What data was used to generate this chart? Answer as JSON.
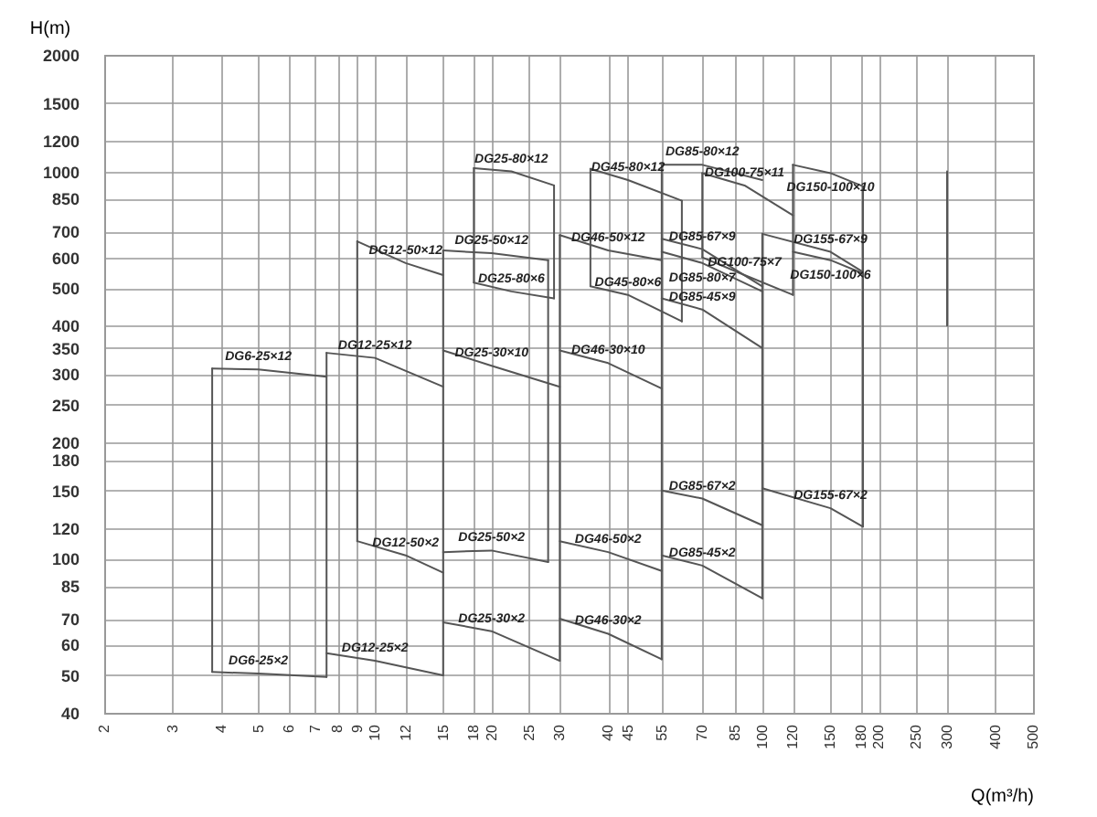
{
  "chart_data": {
    "type": "line",
    "xlabel": "Q(m³/h)",
    "ylabel": "H(m)",
    "log": "xy",
    "grid": true,
    "xlim": [
      2,
      500
    ],
    "ylim": [
      40,
      2000
    ],
    "xticks": [
      2,
      3,
      4,
      5,
      6,
      7,
      8,
      9,
      10,
      12,
      15,
      18,
      20,
      25,
      30,
      40,
      45,
      55,
      70,
      85,
      100,
      120,
      150,
      180,
      200,
      250,
      300,
      400,
      500
    ],
    "yticks": [
      40,
      50,
      60,
      70,
      85,
      100,
      120,
      150,
      180,
      200,
      250,
      300,
      350,
      400,
      500,
      600,
      700,
      850,
      1000,
      1200,
      1500,
      2000
    ],
    "series": [
      {
        "name": "DG6-25×12",
        "color": "#555555",
        "x": [
          3.8,
          5,
          7.5
        ],
        "values": [
          310,
          308,
          295
        ]
      },
      {
        "name": "DG6-25×2",
        "color": "#555555",
        "x": [
          3.8,
          5,
          7.5
        ],
        "values": [
          51,
          50.5,
          49.5
        ]
      },
      {
        "name": "DG12-25×12",
        "color": "#555555",
        "x": [
          7.5,
          10,
          15
        ],
        "values": [
          340,
          330,
          278
        ]
      },
      {
        "name": "DG12-25×2",
        "color": "#555555",
        "x": [
          7.5,
          10,
          15
        ],
        "values": [
          57,
          54.5,
          50
        ]
      },
      {
        "name": "DG12-50×12",
        "color": "#555555",
        "x": [
          9,
          12,
          15
        ],
        "values": [
          660,
          580,
          540
        ]
      },
      {
        "name": "DG12-50×2",
        "color": "#555555",
        "x": [
          9,
          12,
          15
        ],
        "values": [
          111,
          102,
          92
        ]
      },
      {
        "name": "DG25-80×12",
        "color": "#555555",
        "x": [
          18,
          22.5,
          29
        ],
        "values": [
          1020,
          1000,
          920
        ]
      },
      {
        "name": "DG25-80×6",
        "color": "#555555",
        "x": [
          18,
          22.5,
          29
        ],
        "values": [
          516,
          490,
          470
        ]
      },
      {
        "name": "DG25-50×12",
        "color": "#555555",
        "x": [
          15,
          20,
          28
        ],
        "values": [
          625,
          615,
          590
        ]
      },
      {
        "name": "DG25-50×2",
        "color": "#555555",
        "x": [
          15,
          20,
          28
        ],
        "values": [
          104,
          105,
          98
        ]
      },
      {
        "name": "DG25-30×10",
        "color": "#555555",
        "x": [
          15,
          20,
          30
        ],
        "values": [
          345,
          315,
          278
        ]
      },
      {
        "name": "DG25-30×2",
        "color": "#555555",
        "x": [
          15,
          20,
          30
        ],
        "values": [
          68.5,
          65,
          54.5
        ]
      },
      {
        "name": "DG45-80×12",
        "color": "#555555",
        "x": [
          36,
          45,
          62
        ],
        "values": [
          1015,
          950,
          840
        ]
      },
      {
        "name": "DG45-80×6",
        "color": "#555555",
        "x": [
          36,
          45,
          62
        ],
        "values": [
          505,
          480,
          410
        ]
      },
      {
        "name": "DG46-50×12",
        "color": "#555555",
        "x": [
          30,
          40,
          55
        ],
        "values": [
          685,
          625,
          590
        ]
      },
      {
        "name": "DG46-50×2",
        "color": "#555555",
        "x": [
          30,
          40,
          55
        ],
        "values": [
          111,
          104,
          93
        ]
      },
      {
        "name": "DG46-30×10",
        "color": "#555555",
        "x": [
          30,
          40,
          55
        ],
        "values": [
          345,
          320,
          275
        ]
      },
      {
        "name": "DG46-30×2",
        "color": "#555555",
        "x": [
          30,
          40,
          55
        ],
        "values": [
          70,
          64,
          55
        ]
      },
      {
        "name": "DG85-80×12",
        "color": "#555555",
        "x": [
          55,
          70,
          100
        ],
        "values": [
          1040,
          1040,
          950
        ]
      },
      {
        "name": "DG85-67×9",
        "color": "#555555",
        "x": [
          55,
          70,
          100
        ],
        "values": [
          670,
          630,
          505
        ]
      },
      {
        "name": "DG85-80×7",
        "color": "#555555",
        "x": [
          55,
          70,
          100
        ],
        "values": [
          620,
          580,
          490
        ]
      },
      {
        "name": "DG85-45×9",
        "color": "#555555",
        "x": [
          55,
          70,
          100
        ],
        "values": [
          470,
          440,
          350
        ]
      },
      {
        "name": "DG85-67×2",
        "color": "#555555",
        "x": [
          55,
          70,
          100
        ],
        "values": [
          150,
          143,
          122
        ]
      },
      {
        "name": "DG85-45×2",
        "color": "#555555",
        "x": [
          55,
          70,
          100
        ],
        "values": [
          102,
          96,
          79
        ]
      },
      {
        "name": "DG100-75×11",
        "color": "#555555",
        "x": [
          70,
          90,
          120
        ],
        "values": [
          990,
          920,
          770
        ]
      },
      {
        "name": "DG100-75×7",
        "color": "#555555",
        "x": [
          70,
          90,
          120
        ],
        "values": [
          600,
          540,
          480
        ]
      },
      {
        "name": "DG155-67×9",
        "color": "#555555",
        "x": [
          100,
          150,
          182
        ],
        "values": [
          690,
          620,
          550
        ]
      },
      {
        "name": "DG155-67×2",
        "color": "#555555",
        "x": [
          100,
          150,
          182
        ],
        "values": [
          152,
          135,
          121
        ]
      },
      {
        "name": "DG150-100×10",
        "color": "#555555",
        "x": [
          120,
          150,
          182
        ],
        "values": [
          1040,
          990,
          915
        ]
      },
      {
        "name": "DG150-100×6",
        "color": "#555555",
        "x": [
          120,
          150,
          182
        ],
        "values": [
          620,
          590,
          545
        ]
      },
      {
        "color": "#555555",
        "x": [
          3.8,
          3.8
        ],
        "values": [
          51,
          310
        ]
      },
      {
        "color": "#555555",
        "x": [
          7.5,
          7.5
        ],
        "values": [
          49.5,
          340
        ]
      },
      {
        "color": "#555555",
        "x": [
          9,
          9
        ],
        "values": [
          111,
          660
        ]
      },
      {
        "color": "#555555",
        "x": [
          15,
          15
        ],
        "values": [
          50,
          625
        ]
      },
      {
        "color": "#555555",
        "x": [
          18,
          18
        ],
        "values": [
          516,
          1020
        ]
      },
      {
        "color": "#555555",
        "x": [
          28,
          28
        ],
        "values": [
          98,
          590
        ]
      },
      {
        "color": "#555555",
        "x": [
          29,
          29
        ],
        "values": [
          470,
          920
        ]
      },
      {
        "color": "#555555",
        "x": [
          30,
          30
        ],
        "values": [
          54.5,
          685
        ]
      },
      {
        "color": "#555555",
        "x": [
          36,
          36
        ],
        "values": [
          505,
          1015
        ]
      },
      {
        "color": "#555555",
        "x": [
          62,
          62
        ],
        "values": [
          410,
          840
        ]
      },
      {
        "color": "#555555",
        "x": [
          55,
          55
        ],
        "values": [
          55,
          1040
        ]
      },
      {
        "color": "#555555",
        "x": [
          70,
          70
        ],
        "values": [
          600,
          990
        ]
      },
      {
        "color": "#555555",
        "x": [
          100,
          100
        ],
        "values": [
          79,
          690
        ]
      },
      {
        "color": "#555555",
        "x": [
          120,
          120
        ],
        "values": [
          480,
          1040
        ]
      },
      {
        "color": "#555555",
        "x": [
          182,
          182
        ],
        "values": [
          121,
          915
        ]
      },
      {
        "color": "#555555",
        "x": [
          300,
          300
        ],
        "values": [
          400,
          1000
        ]
      }
    ]
  }
}
